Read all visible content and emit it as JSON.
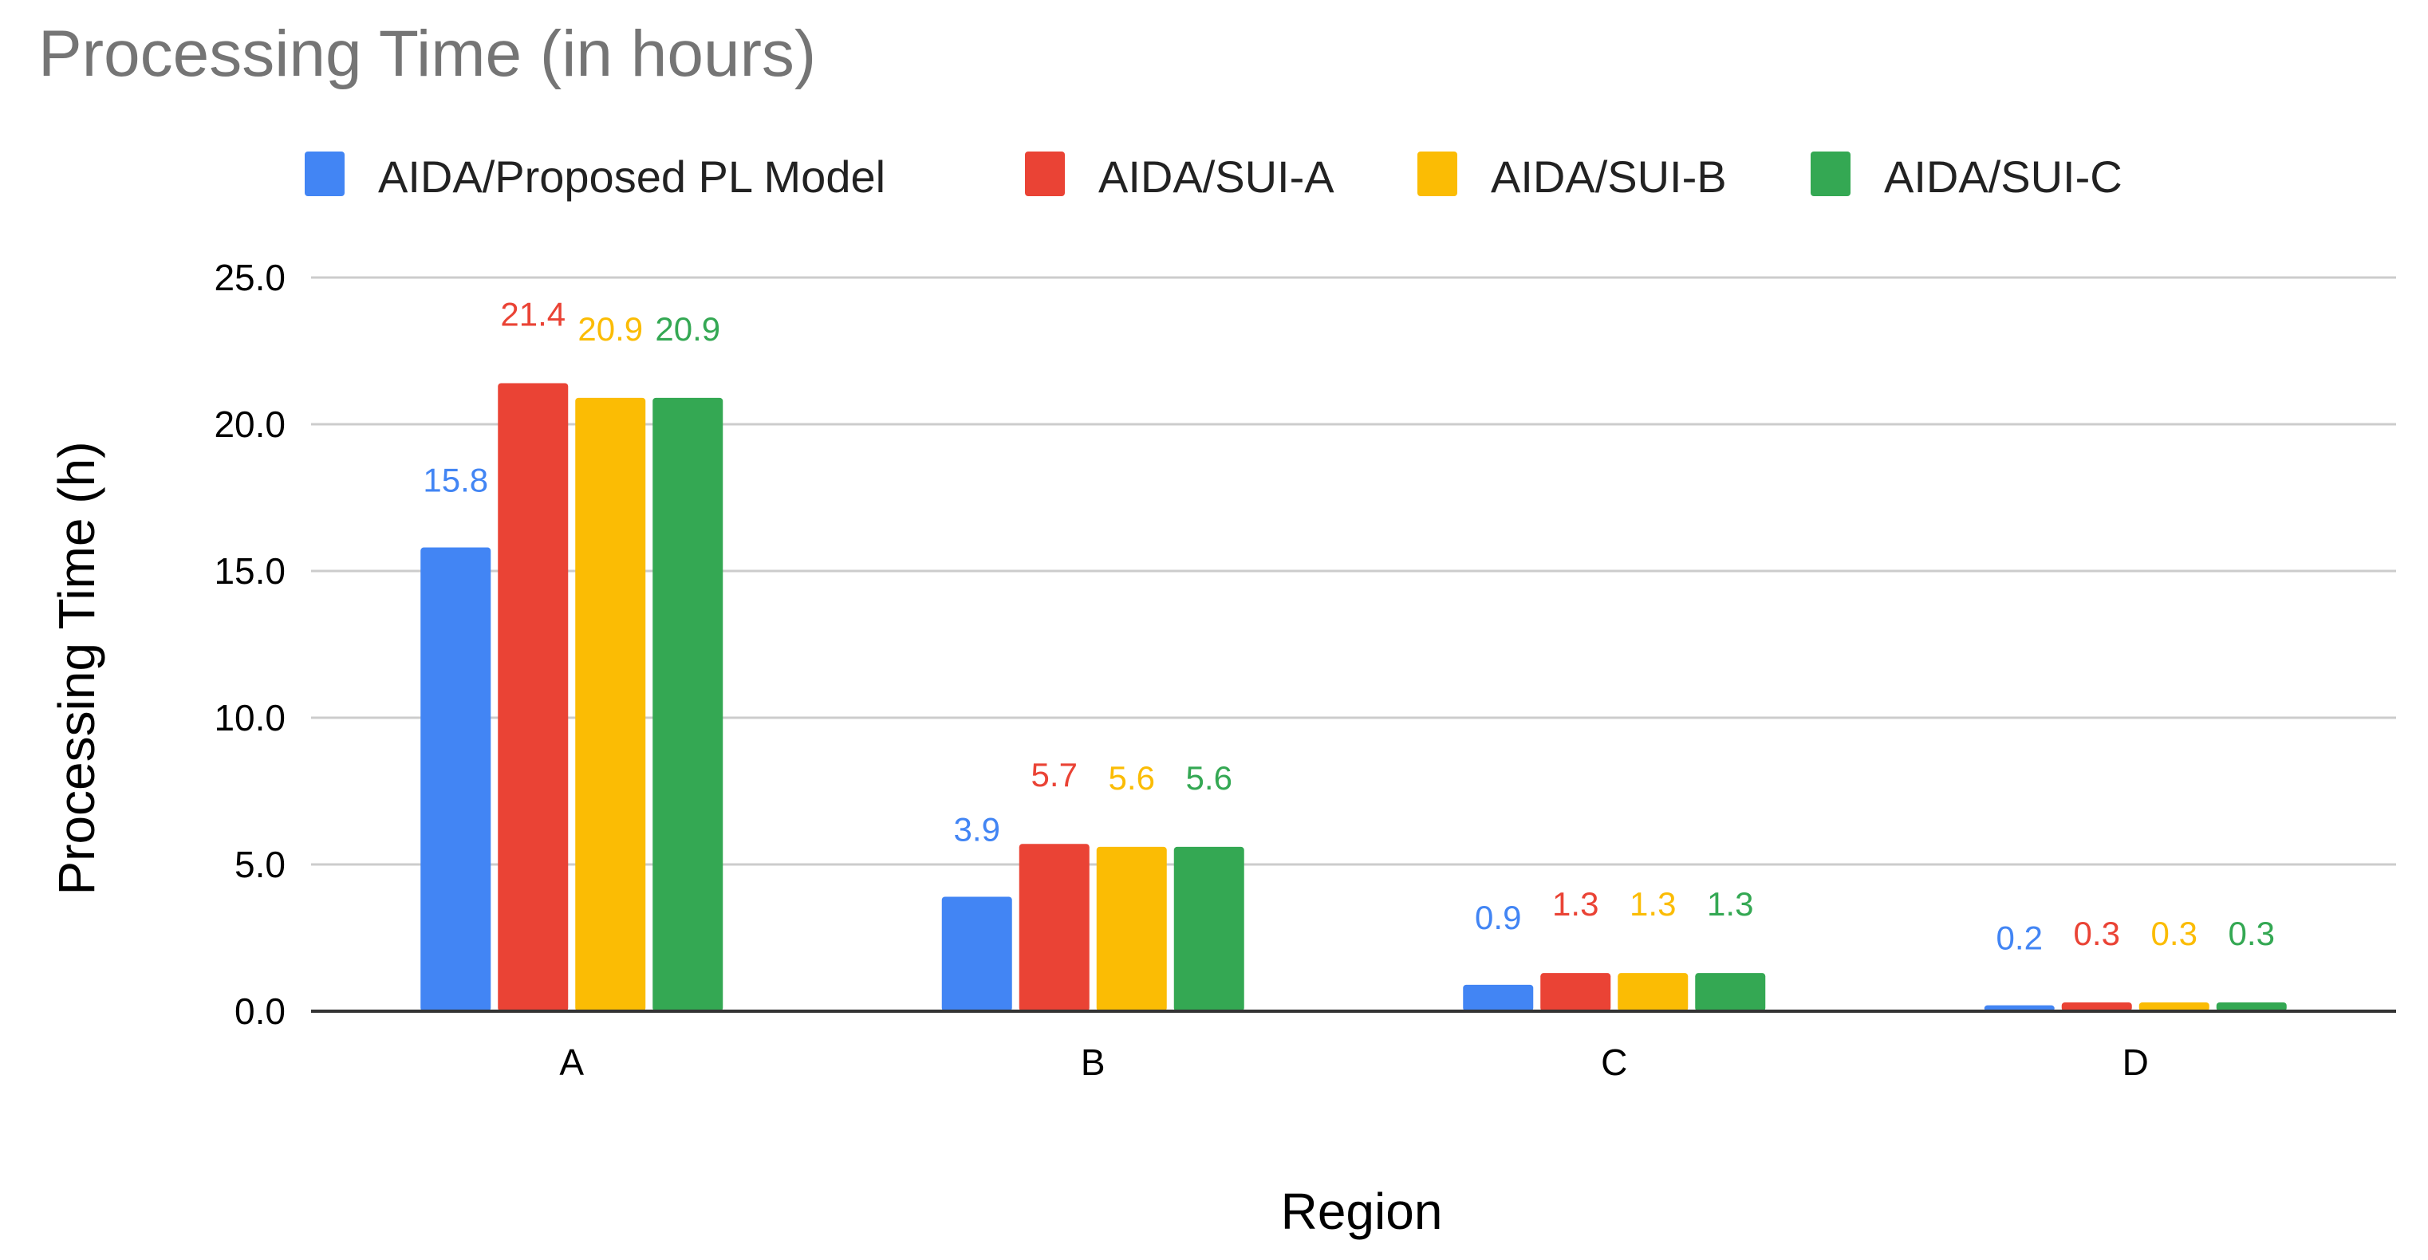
{
  "chart_data": {
    "type": "bar",
    "title": "Processing Time (in hours)",
    "xlabel": "Region",
    "ylabel": "Processing Time (h)",
    "categories": [
      "A",
      "B",
      "C",
      "D"
    ],
    "ylim": [
      0,
      25
    ],
    "yticks": [
      "0.0",
      "5.0",
      "10.0",
      "15.0",
      "20.0",
      "25.0"
    ],
    "grid": true,
    "legend_position": "top",
    "series": [
      {
        "name": "AIDA/Proposed PL Model",
        "color": "#4285f4",
        "values": [
          15.8,
          3.9,
          0.9,
          0.2
        ],
        "labels": [
          "15.8",
          "3.9",
          "0.9",
          "0.2"
        ]
      },
      {
        "name": "AIDA/SUI-A",
        "color": "#ea4335",
        "values": [
          21.4,
          5.7,
          1.3,
          0.3
        ],
        "labels": [
          "21.4",
          "5.7",
          "1.3",
          "0.3"
        ]
      },
      {
        "name": "AIDA/SUI-B",
        "color": "#fbbc04",
        "values": [
          20.9,
          5.6,
          1.3,
          0.3
        ],
        "labels": [
          "20.9",
          "5.6",
          "1.3",
          "0.3"
        ]
      },
      {
        "name": "AIDA/SUI-C",
        "color": "#34a853",
        "values": [
          20.9,
          5.6,
          1.3,
          0.3
        ],
        "labels": [
          "20.9",
          "5.6",
          "1.3",
          "0.3"
        ]
      }
    ]
  }
}
